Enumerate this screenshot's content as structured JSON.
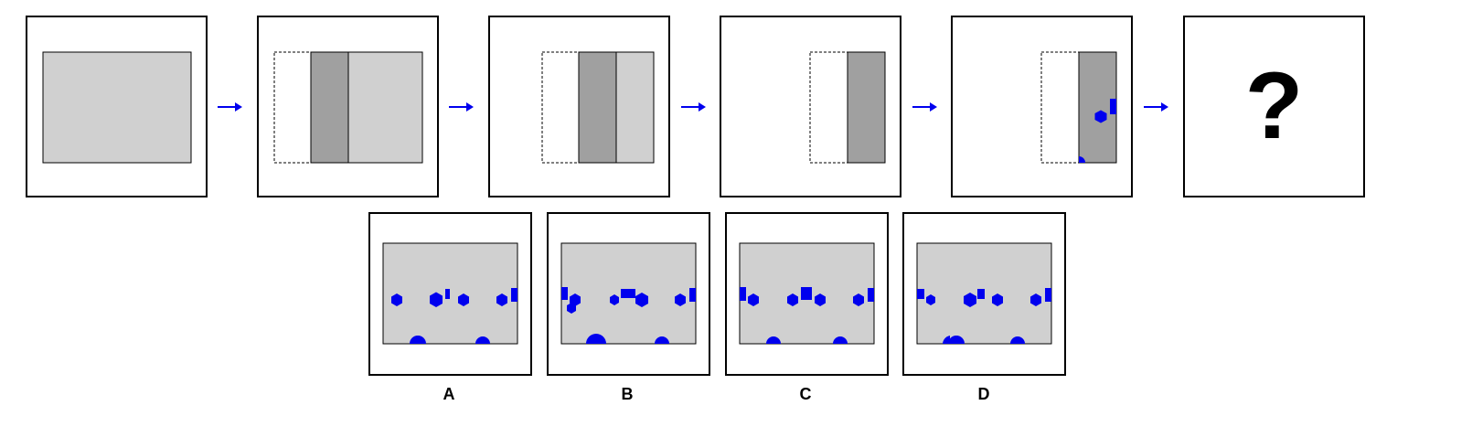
{
  "colors": {
    "paper_light": "#d0d0d0",
    "paper_dark": "#a0a0a0",
    "shape": "#0000ee",
    "arrow": "#0000ee",
    "frame": "#000000"
  },
  "sequence": {
    "question_mark": "?",
    "step_count": 6
  },
  "options": [
    {
      "label": "A"
    },
    {
      "label": "B"
    },
    {
      "label": "C"
    },
    {
      "label": "D"
    }
  ]
}
